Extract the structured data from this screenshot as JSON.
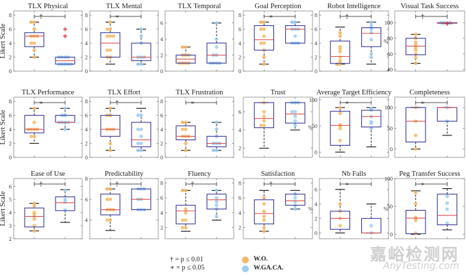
{
  "legend": {
    "dagger_note": "† = p ≤ 0.01",
    "star_note": "∗ = p ≤ 0.05",
    "groups": [
      {
        "label": "W.O.",
        "color": "#f5b86a"
      },
      {
        "label": "W.GA.CA.",
        "color": "#9ccdf2"
      }
    ]
  },
  "watermark": {
    "cn": "嘉峪检测网",
    "en": "AnyTesting.com"
  },
  "colors": {
    "box": "#3a3a9a",
    "median": "#d9534f",
    "whisker": "#222222",
    "outlier": "#d4303c",
    "sigbar": "#555555",
    "frame": "#888888",
    "wo": "#f5b86a",
    "wgaca": "#9ccdf2"
  },
  "chart_data": [
    {
      "type": "box",
      "title": "TLX Physical",
      "ylabel": "Likert Scale",
      "ylim": [
        0,
        8.6
      ],
      "yticks": [
        0,
        2,
        4,
        6,
        8
      ],
      "sig": "†",
      "groups": [
        {
          "name": "W.O.",
          "q1": 3.5,
          "median": 5,
          "q3": 5.5,
          "whisk_lo": 2,
          "whisk_hi": 7,
          "outliers": [],
          "points": [
            2,
            3,
            4,
            4,
            5,
            5,
            5,
            6,
            7,
            7
          ]
        },
        {
          "name": "W.GA.CA.",
          "q1": 1,
          "median": 1.5,
          "q3": 2,
          "whisk_lo": 1,
          "whisk_hi": 2,
          "outliers": [
            5,
            6
          ],
          "points": [
            1,
            1,
            1,
            1,
            1,
            2,
            2,
            2,
            2
          ]
        }
      ]
    },
    {
      "type": "box",
      "title": "TLX Mental",
      "ylabel": "",
      "ylim": [
        0,
        8.6
      ],
      "yticks": [
        0,
        2,
        4,
        6,
        8
      ],
      "sig": "∗",
      "groups": [
        {
          "name": "W.O.",
          "q1": 2,
          "median": 4,
          "q3": 5.5,
          "whisk_lo": 1,
          "whisk_hi": 7,
          "outliers": [],
          "points": [
            2,
            2,
            3,
            3,
            5,
            5,
            5,
            6,
            6,
            7
          ]
        },
        {
          "name": "W.GA.CA.",
          "q1": 1.5,
          "median": 2,
          "q3": 4,
          "whisk_lo": 1,
          "whisk_hi": 6,
          "outliers": [],
          "points": [
            1,
            1,
            2,
            2,
            2,
            4,
            5,
            6
          ]
        }
      ]
    },
    {
      "type": "box",
      "title": "TLX Temporal",
      "ylabel": "",
      "ylim": [
        0,
        7.5
      ],
      "yticks": [
        0,
        2,
        4,
        6
      ],
      "sig": "",
      "groups": [
        {
          "name": "W.O.",
          "q1": 1,
          "median": 1.5,
          "q3": 2,
          "whisk_lo": 1,
          "whisk_hi": 3,
          "outliers": [],
          "points": [
            1,
            1,
            1,
            1,
            2,
            2,
            2,
            3,
            3
          ]
        },
        {
          "name": "W.GA.CA.",
          "q1": 1,
          "median": 2,
          "q3": 3.5,
          "whisk_lo": 1,
          "whisk_hi": 6,
          "outliers": [],
          "points": [
            1,
            1,
            1,
            1,
            2,
            2,
            3,
            4,
            6
          ]
        }
      ]
    },
    {
      "type": "box",
      "title": "Goal Perception",
      "ylabel": "",
      "ylim": [
        0,
        8.6
      ],
      "yticks": [
        0,
        2,
        4,
        6,
        8
      ],
      "sig": "∗",
      "groups": [
        {
          "name": "W.O.",
          "q1": 3,
          "median": 4.5,
          "q3": 6.5,
          "whisk_lo": 1,
          "whisk_hi": 7,
          "outliers": [],
          "points": [
            1,
            2,
            3,
            4,
            4,
            5,
            6,
            6,
            7,
            7
          ]
        },
        {
          "name": "W.GA.CA.",
          "q1": 4,
          "median": 6,
          "q3": 6.5,
          "whisk_lo": 4,
          "whisk_hi": 7,
          "outliers": [],
          "points": [
            4,
            4,
            4,
            5,
            6,
            6,
            6,
            7,
            7
          ]
        }
      ]
    },
    {
      "type": "box",
      "title": "Robot Intelligence",
      "ylabel": "",
      "ylim": [
        0,
        8.6
      ],
      "yticks": [
        0,
        2,
        4,
        6,
        8
      ],
      "sig": "†",
      "groups": [
        {
          "name": "W.O.",
          "q1": 1.1,
          "median": 2.1,
          "q3": 4.3,
          "whisk_lo": 1,
          "whisk_hi": 6.3,
          "outliers": [],
          "points": [
            1,
            1,
            1.2,
            1.5,
            2,
            2.8,
            3.2,
            3.5,
            5,
            5.5
          ]
        },
        {
          "name": "W.GA.CA.",
          "q1": 3.5,
          "median": 5.4,
          "q3": 6.2,
          "whisk_lo": 1,
          "whisk_hi": 7,
          "outliers": [],
          "points": [
            2,
            2.5,
            4.5,
            5.5,
            6,
            6.3,
            6.5,
            7
          ]
        }
      ]
    },
    {
      "type": "box",
      "title": "Visual Task Success",
      "ylabel": "%",
      "ylim": [
        38,
        115
      ],
      "yticks": [
        40,
        60,
        80,
        100
      ],
      "sig": "†",
      "groups": [
        {
          "name": "W.O.",
          "q1": 59,
          "median": 70,
          "q3": 80,
          "whisk_lo": 48,
          "whisk_hi": 85,
          "outliers": [],
          "points": [
            48,
            55,
            60,
            65,
            68,
            70,
            72,
            75,
            80,
            85
          ]
        },
        {
          "name": "W.GA.CA.",
          "q1": 99.5,
          "median": 100,
          "q3": 100,
          "whisk_lo": 98.5,
          "whisk_hi": 100,
          "outliers": [
            98.5
          ],
          "points": [
            100,
            100,
            100,
            100
          ]
        }
      ]
    },
    {
      "type": "box",
      "title": "TLX Performance",
      "ylabel": "Likert Scale",
      "ylim": [
        0,
        8.6
      ],
      "yticks": [
        0,
        2,
        4,
        6,
        8
      ],
      "sig": "∗",
      "groups": [
        {
          "name": "W.O.",
          "q1": 3.5,
          "median": 4,
          "q3": 6,
          "whisk_lo": 2,
          "whisk_hi": 7,
          "outliers": [],
          "points": [
            3,
            3,
            4,
            4,
            4,
            4,
            5,
            7
          ]
        },
        {
          "name": "W.GA.CA.",
          "q1": 5,
          "median": 5,
          "q3": 6,
          "whisk_lo": 4,
          "whisk_hi": 7,
          "outliers": [],
          "points": [
            4,
            5,
            5,
            5,
            5,
            6,
            6,
            7
          ]
        }
      ]
    },
    {
      "type": "box",
      "title": "TLX Effort",
      "ylabel": "",
      "ylim": [
        0,
        8.6
      ],
      "yticks": [
        0,
        2,
        4,
        6,
        8
      ],
      "sig": "†",
      "groups": [
        {
          "name": "W.O.",
          "q1": 3,
          "median": 4,
          "q3": 6,
          "whisk_lo": 1,
          "whisk_hi": 7,
          "outliers": [],
          "points": [
            1,
            2,
            4,
            4,
            4,
            6,
            6,
            7
          ]
        },
        {
          "name": "W.GA.CA.",
          "q1": 1.5,
          "median": 2.5,
          "q3": 5,
          "whisk_lo": 1,
          "whisk_hi": 7,
          "outliers": [],
          "points": [
            1,
            1,
            2,
            2,
            3,
            4,
            4,
            6,
            6
          ]
        }
      ]
    },
    {
      "type": "box",
      "title": "TLX Frustration",
      "ylabel": "",
      "ylim": [
        0,
        8.6
      ],
      "yticks": [
        0,
        2,
        4,
        6,
        8
      ],
      "sig": "∗",
      "groups": [
        {
          "name": "W.O.",
          "q1": 2.5,
          "median": 3,
          "q3": 4.5,
          "whisk_lo": 1,
          "whisk_hi": 5,
          "outliers": [],
          "points": [
            1,
            2,
            3,
            3,
            3,
            4,
            4,
            5,
            5
          ]
        },
        {
          "name": "W.GA.CA.",
          "q1": 1.5,
          "median": 2,
          "q3": 3,
          "whisk_lo": 1,
          "whisk_hi": 5,
          "outliers": [],
          "points": [
            1,
            1,
            2,
            2,
            2,
            3,
            4,
            5
          ]
        }
      ]
    },
    {
      "type": "box",
      "title": "Trust",
      "ylabel": "",
      "ylim": [
        1,
        7.6
      ],
      "yticks": [
        2,
        4,
        6
      ],
      "sig": "",
      "groups": [
        {
          "name": "W.O.",
          "q1": 4.25,
          "median": 5.25,
          "q3": 7,
          "whisk_lo": 2,
          "whisk_hi": 7,
          "outliers": [],
          "points": [
            4.5,
            4.5,
            5,
            5.5,
            6,
            7
          ]
        },
        {
          "name": "W.GA.CA.",
          "q1": 4.75,
          "median": 5.75,
          "q3": 7,
          "whisk_lo": 4,
          "whisk_hi": 7,
          "outliers": [],
          "points": [
            4.5,
            5,
            5.5,
            6,
            6,
            7,
            7,
            7
          ]
        }
      ]
    },
    {
      "type": "box",
      "title": "Average Target Efficiency",
      "ylabel": "%",
      "ylim": [
        -10,
        105
      ],
      "yticks": [
        0,
        50,
        100
      ],
      "sig": "∗",
      "groups": [
        {
          "name": "W.O.",
          "q1": 13,
          "median": 51,
          "q3": 78,
          "whisk_lo": 0,
          "whisk_hi": 85,
          "outliers": [],
          "points": [
            22,
            45,
            50,
            52,
            74,
            85
          ]
        },
        {
          "name": "W.GA.CA.",
          "q1": 48,
          "median": 68,
          "q3": 80,
          "whisk_lo": 10,
          "whisk_hi": 85,
          "outliers": [],
          "points": [
            45,
            55,
            58,
            68,
            80,
            83
          ]
        }
      ]
    },
    {
      "type": "box",
      "title": "Completeness",
      "ylabel": "",
      "ylim": [
        -20,
        125
      ],
      "yticks": [
        0,
        50,
        100
      ],
      "sig": "∗",
      "groups": [
        {
          "name": "W.O.",
          "q1": 17,
          "median": 67,
          "q3": 100,
          "whisk_lo": 0,
          "whisk_hi": 100,
          "outliers": [],
          "points": [
            0,
            33,
            67,
            100
          ]
        },
        {
          "name": "W.GA.CA.",
          "q1": 67,
          "median": 100,
          "q3": 100,
          "whisk_lo": 33,
          "whisk_hi": 100,
          "outliers": [],
          "points": [
            67,
            100
          ]
        }
      ]
    },
    {
      "type": "box",
      "title": "Ease of Use",
      "ylabel": "Likert Scale",
      "ylim": [
        2,
        6.6
      ],
      "yticks": [
        2,
        3,
        4,
        5,
        6
      ],
      "sig": "†",
      "groups": [
        {
          "name": "W.O.",
          "q1": 2.9,
          "median": 3.7,
          "q3": 4.35,
          "whisk_lo": 2.6,
          "whisk_hi": 4.7,
          "outliers": [],
          "points": [
            2.6,
            3,
            3.5,
            3.7,
            3.9,
            4,
            4.5,
            4.7
          ]
        },
        {
          "name": "W.GA.CA.",
          "q1": 4.15,
          "median": 4.75,
          "q3": 5.2,
          "whisk_lo": 3.25,
          "whisk_hi": 5.75,
          "outliers": [],
          "points": [
            4.2,
            4.8,
            5,
            5.7
          ]
        }
      ]
    },
    {
      "type": "box",
      "title": "Predictability",
      "ylabel": "",
      "ylim": [
        2.2,
        8
      ],
      "yticks": [
        4,
        6,
        8
      ],
      "sig": "†",
      "groups": [
        {
          "name": "W.O.",
          "q1": 4.5,
          "median": 5,
          "q3": 6.5,
          "whisk_lo": 3,
          "whisk_hi": 7,
          "outliers": [],
          "points": [
            4,
            4,
            5,
            5,
            5,
            6,
            6,
            7,
            7
          ]
        },
        {
          "name": "W.GA.CA.",
          "q1": 5,
          "median": 6,
          "q3": 7,
          "whisk_lo": 5,
          "whisk_hi": 7,
          "outliers": [],
          "points": [
            5,
            5,
            5,
            6,
            6,
            7,
            7,
            7
          ]
        }
      ]
    },
    {
      "type": "box",
      "title": "Fluency",
      "ylabel": "",
      "ylim": [
        0.5,
        8.6
      ],
      "yticks": [
        2,
        4,
        6,
        8
      ],
      "sig": "†",
      "groups": [
        {
          "name": "W.O.",
          "q1": 2.5,
          "median": 4.25,
          "q3": 5,
          "whisk_lo": 1.5,
          "whisk_hi": 7,
          "outliers": [],
          "points": [
            2,
            2,
            3,
            3,
            4,
            4.5,
            7,
            7
          ]
        },
        {
          "name": "W.GA.CA.",
          "q1": 4.5,
          "median": 5.75,
          "q3": 6.5,
          "whisk_lo": 3,
          "whisk_hi": 7,
          "outliers": [],
          "points": [
            3.5,
            4.5,
            5,
            5.5,
            6,
            7
          ]
        }
      ]
    },
    {
      "type": "box",
      "title": "Satisfaction",
      "ylabel": "",
      "ylim": [
        0.5,
        8.6
      ],
      "yticks": [
        2,
        4,
        6,
        8
      ],
      "sig": "†",
      "groups": [
        {
          "name": "W.O.",
          "q1": 2.5,
          "median": 3.9,
          "q3": 5.75,
          "whisk_lo": 1.5,
          "whisk_hi": 7,
          "outliers": [],
          "points": [
            1.5,
            2,
            3,
            3.5,
            4.2,
            5.2,
            6
          ]
        },
        {
          "name": "W.GA.CA.",
          "q1": 5,
          "median": 5.6,
          "q3": 6.5,
          "whisk_lo": 4.5,
          "whisk_hi": 7,
          "outliers": [],
          "points": [
            4.5,
            5,
            5.5,
            6,
            6.5
          ]
        }
      ]
    },
    {
      "type": "box",
      "title": "Nb Falls",
      "ylabel": "%",
      "ylim": [
        -0.8,
        7.5
      ],
      "yticks": [
        0,
        2,
        4,
        6
      ],
      "sig": "∗",
      "groups": [
        {
          "name": "W.O.",
          "q1": 0.5,
          "median": 2,
          "q3": 3,
          "whisk_lo": 0,
          "whisk_hi": 6,
          "outliers": [],
          "points": [
            1,
            2,
            3,
            4
          ]
        },
        {
          "name": "W.GA.CA.",
          "q1": 0,
          "median": 0,
          "q3": 2,
          "whisk_lo": 0,
          "whisk_hi": 4,
          "outliers": [],
          "points": [
            0,
            1
          ]
        }
      ]
    },
    {
      "type": "box",
      "title": "Peg Transfer Success",
      "ylabel": "%",
      "ylim": [
        -8,
        100
      ],
      "yticks": [
        0,
        50,
        100
      ],
      "sig": "∗",
      "groups": [
        {
          "name": "W.O.",
          "q1": 1,
          "median": 29,
          "q3": 43,
          "whisk_lo": 0,
          "whisk_hi": 78,
          "outliers": [],
          "points": [
            2,
            25,
            28,
            30,
            55,
            75
          ]
        },
        {
          "name": "W.GA.CA.",
          "q1": 17,
          "median": 34,
          "q3": 72,
          "whisk_lo": 8,
          "whisk_hi": 82,
          "outliers": [],
          "points": [
            20,
            45,
            56,
            68
          ]
        }
      ]
    }
  ]
}
